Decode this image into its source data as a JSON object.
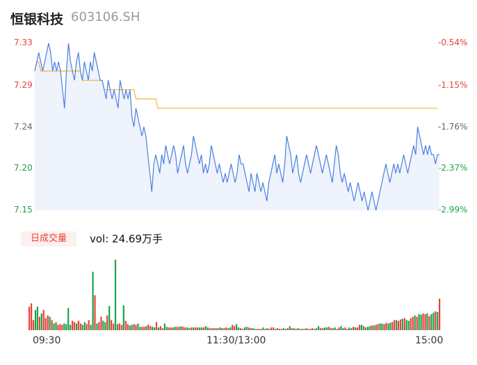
{
  "header": {
    "name": "恒银科技",
    "code": "603106.SH"
  },
  "volume": {
    "badge": "日成交量",
    "text": "vol: 24.69万手"
  },
  "colors": {
    "price": "#4a7fe0",
    "avg": "#f1b72a",
    "up": "#e8423a",
    "down": "#1aa34a",
    "fill": "#eef3fc"
  },
  "chart_data": {
    "type": "line",
    "x_ticks": [
      "09:30",
      "11:30/13:00",
      "15:00"
    ],
    "y_left_ticks": [
      "7.33",
      "7.29",
      "7.24",
      "7.20",
      "7.15"
    ],
    "y_right_ticks": [
      "-0.54%",
      "-1.15%",
      "-1.76%",
      "-2.37%",
      "-2.99%"
    ],
    "ylim": [
      7.15,
      7.33
    ],
    "series": [
      {
        "values": [
          7.3,
          7.31,
          7.32,
          7.31,
          7.3,
          7.31,
          7.32,
          7.33,
          7.32,
          7.3,
          7.31,
          7.3,
          7.31,
          7.3,
          7.28,
          7.26,
          7.3,
          7.33,
          7.31,
          7.3,
          7.29,
          7.31,
          7.32,
          7.3,
          7.29,
          7.31,
          7.3,
          7.29,
          7.31,
          7.3,
          7.32,
          7.31,
          7.3,
          7.29,
          7.29,
          7.28,
          7.27,
          7.29,
          7.28,
          7.27,
          7.28,
          7.27,
          7.26,
          7.29,
          7.28,
          7.27,
          7.28,
          7.27,
          7.28,
          7.25,
          7.24,
          7.26,
          7.25,
          7.24,
          7.23,
          7.24,
          7.23,
          7.21,
          7.19,
          7.17,
          7.2,
          7.21,
          7.2,
          7.19,
          7.21,
          7.2,
          7.22,
          7.21,
          7.2,
          7.21,
          7.22,
          7.21,
          7.19,
          7.2,
          7.21,
          7.22,
          7.2,
          7.19,
          7.2,
          7.21,
          7.23,
          7.22,
          7.21,
          7.2,
          7.21,
          7.19,
          7.2,
          7.19,
          7.2,
          7.22,
          7.21,
          7.2,
          7.19,
          7.2,
          7.19,
          7.18,
          7.19,
          7.18,
          7.19,
          7.2,
          7.19,
          7.18,
          7.19,
          7.21,
          7.2,
          7.2,
          7.19,
          7.18,
          7.17,
          7.19,
          7.18,
          7.17,
          7.19,
          7.18,
          7.17,
          7.18,
          7.17,
          7.16,
          7.18,
          7.19,
          7.2,
          7.21,
          7.19,
          7.2,
          7.19,
          7.18,
          7.2,
          7.23,
          7.22,
          7.21,
          7.19,
          7.2,
          7.21,
          7.19,
          7.18,
          7.19,
          7.2,
          7.21,
          7.2,
          7.19,
          7.2,
          7.21,
          7.22,
          7.21,
          7.2,
          7.19,
          7.2,
          7.21,
          7.2,
          7.19,
          7.18,
          7.2,
          7.22,
          7.21,
          7.19,
          7.18,
          7.19,
          7.18,
          7.17,
          7.18,
          7.17,
          7.16,
          7.17,
          7.18,
          7.17,
          7.16,
          7.17,
          7.16,
          7.15,
          7.16,
          7.17,
          7.16,
          7.15,
          7.16,
          7.17,
          7.18,
          7.19,
          7.2,
          7.19,
          7.18,
          7.19,
          7.2,
          7.19,
          7.2,
          7.19,
          7.2,
          7.21,
          7.2,
          7.19,
          7.2,
          7.21,
          7.22,
          7.21,
          7.24,
          7.23,
          7.22,
          7.21,
          7.22,
          7.21,
          7.22,
          7.21,
          7.21,
          7.2,
          7.21,
          7.21
        ]
      },
      {
        "values": [
          7.3,
          7.31,
          7.31,
          7.3,
          7.3,
          7.3,
          7.3,
          7.3,
          7.3,
          7.3,
          7.3,
          7.3,
          7.3,
          7.3,
          7.3,
          7.3,
          7.3,
          7.3,
          7.3,
          7.3,
          7.3,
          7.3,
          7.3,
          7.3,
          7.29,
          7.29,
          7.29,
          7.29,
          7.29,
          7.29,
          7.29,
          7.29,
          7.29,
          7.29,
          7.29,
          7.28,
          7.28,
          7.28,
          7.28,
          7.28,
          7.28,
          7.28,
          7.28,
          7.28,
          7.28,
          7.28,
          7.28,
          7.28,
          7.28,
          7.28,
          7.28,
          7.27,
          7.27,
          7.27,
          7.27,
          7.27,
          7.27,
          7.27,
          7.27,
          7.27,
          7.27,
          7.27,
          7.26,
          7.26,
          7.26,
          7.26,
          7.26,
          7.26,
          7.26,
          7.26,
          7.26,
          7.26,
          7.26,
          7.26,
          7.26,
          7.26,
          7.26,
          7.26,
          7.26,
          7.26,
          7.26,
          7.26,
          7.26,
          7.26,
          7.26,
          7.26,
          7.26,
          7.26,
          7.26,
          7.26,
          7.26,
          7.26,
          7.26,
          7.26,
          7.26,
          7.26,
          7.26,
          7.26,
          7.26,
          7.26,
          7.26,
          7.26,
          7.26,
          7.26,
          7.26,
          7.26,
          7.26,
          7.26,
          7.26,
          7.26,
          7.26,
          7.26,
          7.26,
          7.26,
          7.26,
          7.26,
          7.26,
          7.26,
          7.26,
          7.26,
          7.26,
          7.26,
          7.26,
          7.26,
          7.26,
          7.26,
          7.26,
          7.26,
          7.26,
          7.26,
          7.26,
          7.26,
          7.26,
          7.26,
          7.26,
          7.26,
          7.26,
          7.26,
          7.26,
          7.26,
          7.26,
          7.26,
          7.26,
          7.26,
          7.26,
          7.26,
          7.26,
          7.26,
          7.26,
          7.26,
          7.26,
          7.26,
          7.26,
          7.26,
          7.26,
          7.26,
          7.26,
          7.26,
          7.26,
          7.26,
          7.26,
          7.26,
          7.26,
          7.26,
          7.26,
          7.26,
          7.26,
          7.26,
          7.26,
          7.26,
          7.26,
          7.26,
          7.26,
          7.26,
          7.26,
          7.26,
          7.26,
          7.26,
          7.26,
          7.26,
          7.26,
          7.26,
          7.26,
          7.26,
          7.26,
          7.26,
          7.26,
          7.26,
          7.26,
          7.26,
          7.26,
          7.26,
          7.26,
          7.26,
          7.26,
          7.26,
          7.26,
          7.26,
          7.26,
          7.26,
          7.26,
          7.26,
          7.26,
          7.26
        ]
      }
    ],
    "volume": {
      "values": [
        35,
        40,
        15,
        30,
        35,
        20,
        25,
        30,
        18,
        22,
        20,
        15,
        10,
        12,
        8,
        9,
        8,
        10,
        9,
        33,
        8,
        14,
        12,
        10,
        14,
        10,
        8,
        12,
        9,
        15,
        8,
        87,
        52,
        10,
        12,
        20,
        14,
        12,
        22,
        36,
        15,
        10,
        105,
        9,
        10,
        8,
        37,
        14,
        9,
        7,
        8,
        9,
        8,
        10,
        5,
        5,
        5,
        6,
        8,
        6,
        5,
        4,
        12,
        4,
        6,
        3,
        10,
        5,
        4,
        4,
        4,
        5,
        5,
        5,
        6,
        5,
        4,
        4,
        3,
        4,
        4,
        4,
        4,
        4,
        4,
        4,
        6,
        4,
        3,
        3,
        3,
        3,
        3,
        4,
        3,
        3,
        4,
        3,
        4,
        8,
        6,
        9,
        4,
        3,
        2,
        4,
        5,
        4,
        3,
        3,
        2,
        2,
        2,
        2,
        4,
        2,
        3,
        2,
        4,
        4,
        2,
        3,
        2,
        2,
        3,
        2,
        3,
        6,
        3,
        3,
        2,
        3,
        2,
        2,
        2,
        3,
        2,
        2,
        3,
        2,
        3,
        6,
        3,
        3,
        4,
        4,
        5,
        3,
        3,
        4,
        2,
        4,
        6,
        3,
        4,
        2,
        4,
        3,
        5,
        4,
        4,
        8,
        8,
        6,
        4,
        5,
        6,
        7,
        7,
        8,
        9,
        10,
        10,
        9,
        11,
        10,
        11,
        12,
        15,
        15,
        14,
        16,
        17,
        18,
        15,
        14,
        18,
        20,
        22,
        20,
        24,
        23,
        25,
        24,
        25,
        21,
        24,
        26,
        28,
        27,
        47
      ],
      "directions": "uuudduduuududduuudddduuduudduudduduudduduudduuduudduudduuduudduduudduudduuduudduduuddudduuduudduudduudduudduudduudduuduudduudduduuddudduuduudduudduudduudduudduduuddudduduudduudduuduududduududduududduduudduu"
    }
  }
}
